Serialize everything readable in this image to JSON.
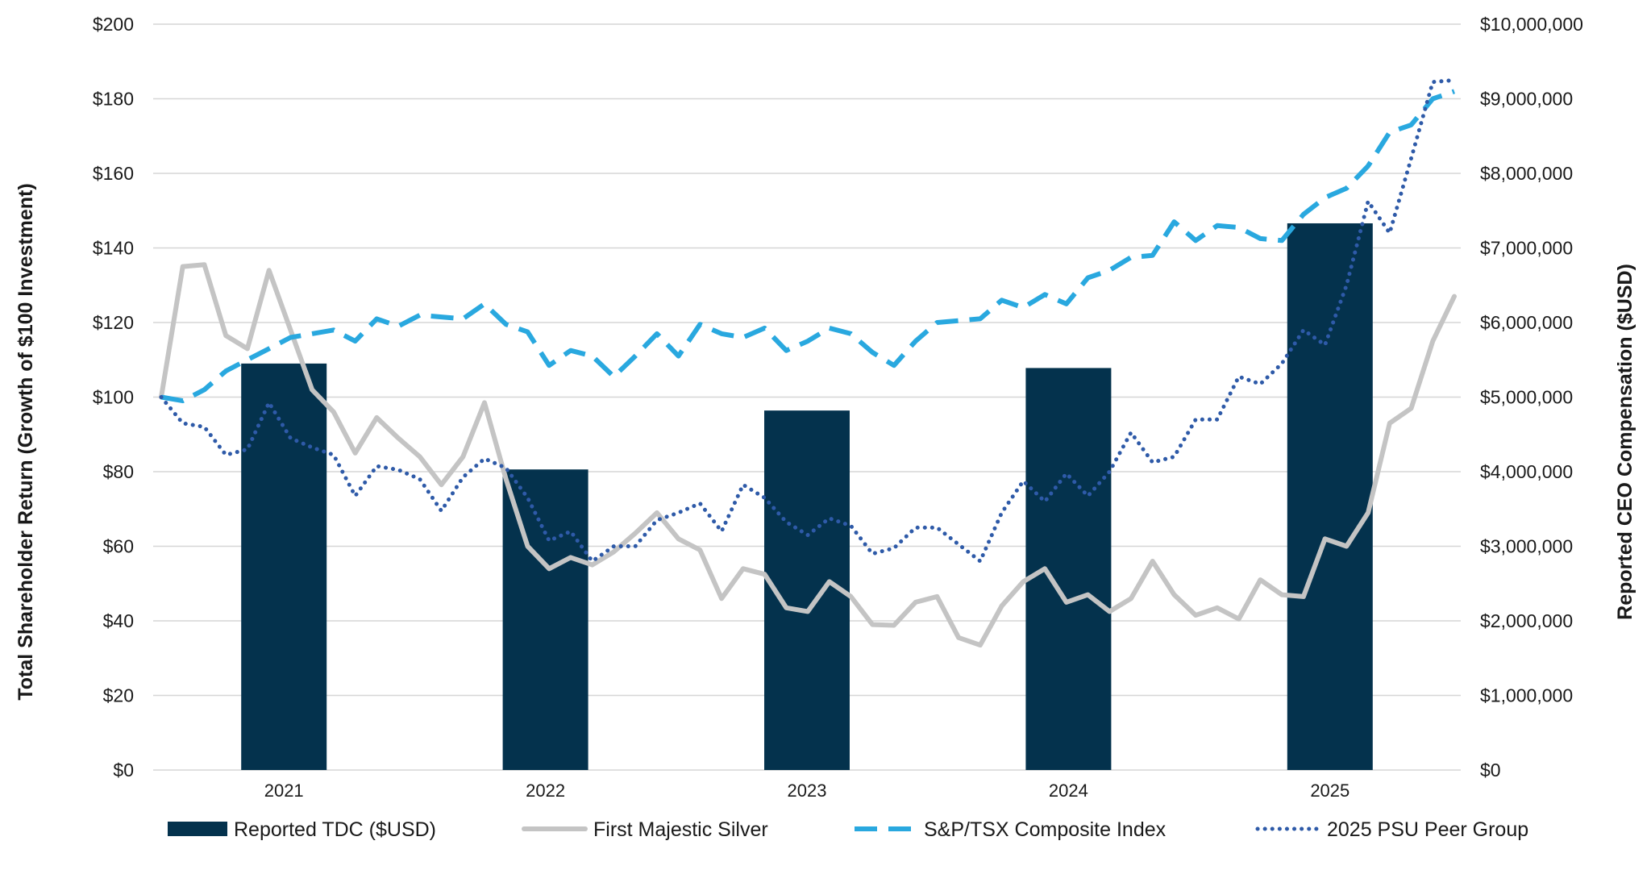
{
  "chart_data": {
    "type": "bar+line",
    "title": "",
    "categories": [
      "2021",
      "2022",
      "2023",
      "2024",
      "2025"
    ],
    "left_axis": {
      "label": "Total Shareholder Return (Growth of $100 Investment)",
      "range": [
        0,
        200
      ],
      "ticks": [
        0,
        20,
        40,
        60,
        80,
        100,
        120,
        140,
        160,
        180,
        200
      ],
      "tick_labels": [
        "$0",
        "$20",
        "$40",
        "$60",
        "$80",
        "$100",
        "$120",
        "$140",
        "$160",
        "$180",
        "$200"
      ]
    },
    "right_axis": {
      "label": "Reported CEO Compensation ($USD)",
      "range": [
        0,
        10000000
      ],
      "ticks": [
        0,
        1000000,
        2000000,
        3000000,
        4000000,
        5000000,
        6000000,
        7000000,
        8000000,
        9000000,
        10000000
      ],
      "tick_labels": [
        "$0",
        "$1,000,000",
        "$2,000,000",
        "$3,000,000",
        "$4,000,000",
        "$5,000,000",
        "$6,000,000",
        "$7,000,000",
        "$8,000,000",
        "$9,000,000",
        "$10,000,000"
      ]
    },
    "grid": true,
    "legend_position": "bottom",
    "bars": {
      "name": "Reported TDC ($USD)",
      "axis": "right",
      "color": "#04324d",
      "values": [
        5450000,
        4030000,
        4820000,
        5390000,
        7330000
      ]
    },
    "x_range": [
      0,
      60
    ],
    "series": [
      {
        "name": "First Majestic Silver",
        "axis": "left",
        "style": "solid",
        "color": "#c4c4c4",
        "x": [
          0,
          1,
          2,
          3,
          4,
          5,
          6,
          7,
          8,
          9,
          10,
          11,
          12,
          13,
          14,
          15,
          16,
          17,
          18,
          19,
          20,
          21,
          22,
          23,
          24,
          25,
          26,
          27,
          28,
          29,
          30,
          31,
          32,
          33,
          34,
          35,
          36,
          37,
          38,
          39,
          40,
          41,
          42,
          43,
          44,
          45,
          46,
          47,
          48,
          49,
          50,
          51,
          52,
          53,
          54,
          55,
          56,
          57,
          58,
          59,
          60
        ],
        "values": [
          100,
          135,
          135.5,
          116.5,
          113,
          134,
          118,
          102,
          96,
          85,
          94.5,
          89,
          84,
          76.5,
          84,
          98.5,
          78,
          60,
          54,
          57,
          55,
          58.5,
          63.5,
          69,
          62,
          59,
          46,
          54,
          52.5,
          43.5,
          42.5,
          50.5,
          46.5,
          39,
          38.8,
          45,
          46.5,
          35.5,
          33.5,
          44,
          50.5,
          54,
          45,
          47,
          42.5,
          46,
          56,
          47,
          41.5,
          43.5,
          40.5,
          51,
          47,
          46.5,
          62,
          60,
          69,
          93,
          97,
          115,
          127
        ]
      },
      {
        "name": "S&P/TSX Composite Index",
        "axis": "left",
        "style": "dashed",
        "color": "#29a8df",
        "x": [
          0,
          1,
          2,
          3,
          4,
          5,
          6,
          7,
          8,
          9,
          10,
          11,
          12,
          13,
          14,
          15,
          16,
          17,
          18,
          19,
          20,
          21,
          22,
          23,
          24,
          25,
          26,
          27,
          28,
          29,
          30,
          31,
          32,
          33,
          34,
          35,
          36,
          37,
          38,
          39,
          40,
          41,
          42,
          43,
          44,
          45,
          46,
          47,
          48,
          49,
          50,
          51,
          52,
          53,
          54,
          55,
          56,
          57,
          58,
          59,
          60
        ],
        "values": [
          100,
          99,
          102,
          107,
          110,
          113,
          116,
          117,
          118,
          115,
          121,
          119,
          122,
          121.5,
          121,
          125,
          119.5,
          117.5,
          108.5,
          112.5,
          111,
          105.5,
          111,
          117,
          111,
          119.5,
          117,
          116,
          118.5,
          112.5,
          115,
          118.5,
          117,
          112,
          108.5,
          115,
          120,
          120.5,
          121,
          126,
          124,
          127.5,
          125,
          132,
          134,
          137.5,
          138,
          147,
          142,
          146,
          145.5,
          142.5,
          142,
          149,
          153.5,
          156,
          162,
          171,
          173,
          180,
          182
        ]
      },
      {
        "name": "2025 PSU Peer Group",
        "axis": "left",
        "style": "dotted",
        "color": "#2e5aa8",
        "x": [
          0,
          1,
          2,
          3,
          4,
          5,
          6,
          7,
          8,
          9,
          10,
          11,
          12,
          13,
          14,
          15,
          16,
          17,
          18,
          19,
          20,
          21,
          22,
          23,
          24,
          25,
          26,
          27,
          28,
          29,
          30,
          31,
          32,
          33,
          34,
          35,
          36,
          37,
          38,
          39,
          40,
          41,
          42,
          43,
          44,
          45,
          46,
          47,
          48,
          49,
          50,
          51,
          52,
          53,
          54,
          55,
          56,
          57,
          58,
          59,
          60
        ],
        "values": [
          100,
          93,
          92,
          84.5,
          86,
          98.5,
          89,
          86.5,
          84.5,
          73.5,
          81.5,
          80.5,
          78,
          69.5,
          78.5,
          83.5,
          81,
          73,
          61.5,
          64,
          56,
          60,
          60,
          67,
          69,
          71.5,
          64,
          76.5,
          73,
          66.5,
          63,
          67.5,
          65.5,
          58,
          59.5,
          65,
          65,
          60.5,
          56,
          69,
          77.5,
          72,
          79.5,
          73.5,
          80,
          90.5,
          82.5,
          84,
          94,
          94,
          105.5,
          103.5,
          109,
          118,
          114,
          130,
          152.5,
          144,
          164,
          184.5,
          185
        ]
      }
    ]
  }
}
